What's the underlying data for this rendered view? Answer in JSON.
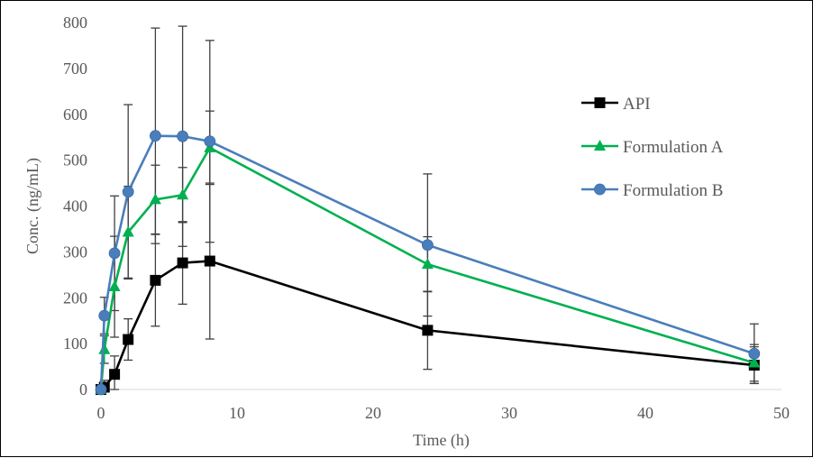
{
  "chart_data": {
    "type": "line",
    "title": "",
    "xlabel": "Time (h)",
    "ylabel": "Conc. (ng/mL)",
    "xlim": [
      0,
      50
    ],
    "ylim": [
      0,
      800
    ],
    "x_ticks": [
      0,
      10,
      20,
      30,
      40,
      50
    ],
    "x_tick_labels": [
      "0",
      "10",
      "20",
      "30",
      "40",
      "50"
    ],
    "y_ticks": [
      0,
      100,
      200,
      300,
      400,
      500,
      600,
      700,
      800
    ],
    "y_tick_labels": [
      "0",
      "100",
      "200",
      "300",
      "400",
      "500",
      "600",
      "700",
      "800"
    ],
    "grid": false,
    "legend_position": "right",
    "error_bar_color": "#404040",
    "axis_color": "#d9d9d9",
    "series": [
      {
        "name": "API",
        "color": "#000000",
        "marker": "square",
        "x": [
          0,
          0.25,
          1,
          2,
          4,
          6,
          8,
          24,
          48
        ],
        "y": [
          0,
          5,
          33,
          109,
          238,
          276,
          280,
          129,
          53
        ],
        "err": [
          0,
          15,
          40,
          45,
          100,
          90,
          170,
          85,
          40
        ]
      },
      {
        "name": "Formulation A",
        "color": "#00b050",
        "marker": "triangle",
        "x": [
          0,
          0.25,
          1,
          2,
          4,
          6,
          8,
          24,
          48
        ],
        "y": [
          0,
          87,
          224,
          343,
          414,
          424,
          527,
          273,
          58
        ],
        "err": [
          0,
          30,
          110,
          100,
          75,
          60,
          80,
          60,
          40
        ]
      },
      {
        "name": "Formulation B",
        "color": "#4a7ebb",
        "marker": "circle",
        "x": [
          0,
          0.25,
          1,
          2,
          4,
          6,
          8,
          24,
          48
        ],
        "y": [
          0,
          161,
          297,
          431,
          553,
          552,
          541,
          315,
          78
        ],
        "err": [
          0,
          40,
          125,
          190,
          235,
          240,
          220,
          155,
          65
        ]
      }
    ]
  }
}
